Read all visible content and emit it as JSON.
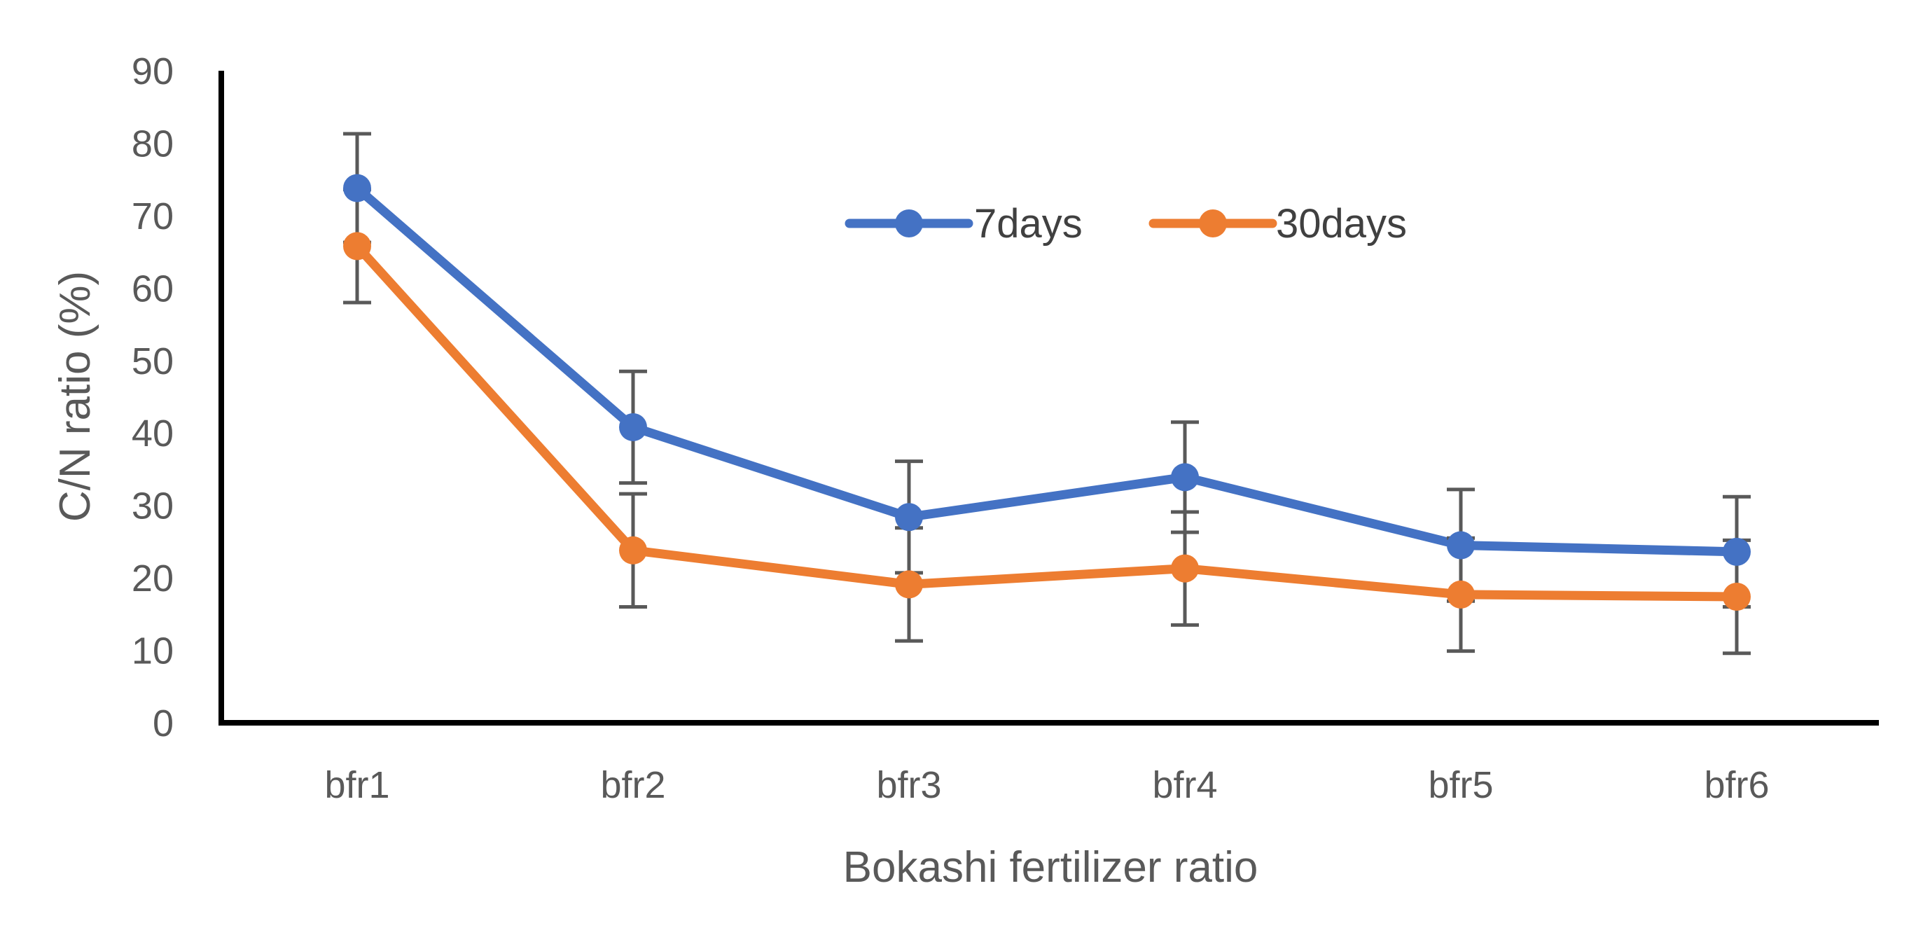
{
  "chart_data": {
    "type": "line",
    "title": "",
    "xlabel": "Bokashi fertilizer ratio",
    "ylabel": "C/N ratio (%)",
    "categories": [
      "bfr1",
      "bfr2",
      "bfr3",
      "bfr4",
      "bfr5",
      "bfr6"
    ],
    "ylim": [
      0,
      90
    ],
    "yticks": [
      0,
      10,
      20,
      30,
      40,
      50,
      60,
      70,
      80,
      90
    ],
    "ytick_labels": [
      "0",
      "10",
      "20",
      "30",
      "40",
      "50",
      "60",
      "70",
      "80",
      "90"
    ],
    "grid": false,
    "legend_position": "top-center",
    "series": [
      {
        "name": "7days",
        "color": "#4472C4",
        "values": [
          73.8,
          40.8,
          28.4,
          33.9,
          24.5,
          23.6
        ],
        "error": [
          7.5,
          7.7,
          7.7,
          7.6,
          7.7,
          7.6
        ]
      },
      {
        "name": "30days",
        "color": "#ED7D31",
        "values": [
          65.8,
          23.8,
          19.1,
          21.3,
          17.7,
          17.4
        ],
        "error": [
          7.8,
          7.8,
          7.8,
          7.8,
          7.8,
          7.8
        ]
      }
    ],
    "error_bar_color": "#595959"
  }
}
